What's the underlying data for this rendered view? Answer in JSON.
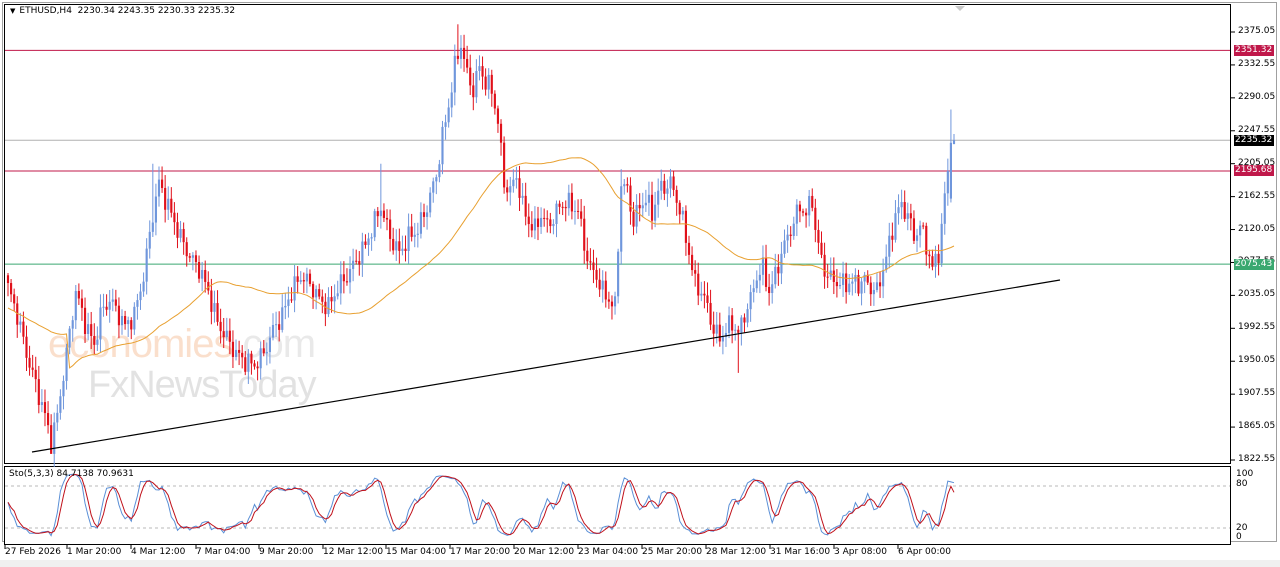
{
  "header": {
    "symbol_timeframe": "ETHUSD,H4",
    "ohlc": "2230.34 2243.35 2230.33 2235.32",
    "collapse_icon": "triangle-down-icon"
  },
  "watermark": {
    "line1_a": "economies",
    "line1_b": ".com",
    "line2": "FxNewsToday"
  },
  "colors": {
    "bull": "#6f96dc",
    "bear": "#e0101a",
    "ma": "#e8a030",
    "resistance": "#c0184a",
    "support": "#3aa870",
    "current": "#b0b0b0",
    "trendline": "#000000",
    "sto_main": "#5a8fd6",
    "sto_signal": "#c0101a"
  },
  "price_axis": {
    "ticks": [
      "2375.05",
      "2332.55",
      "2290.05",
      "2247.55",
      "2205.05",
      "2162.55",
      "2120.05",
      "2077.55",
      "2035.05",
      "1992.55",
      "1950.05",
      "1907.55",
      "1865.05",
      "1822.55"
    ],
    "max": 2375.05,
    "min": 1822.55
  },
  "levels": [
    {
      "name": "resistance-upper",
      "value": "2351.32",
      "color": "#c0184a"
    },
    {
      "name": "current-price",
      "value": "2235.32",
      "color": "#000000"
    },
    {
      "name": "resistance-lower",
      "value": "2195.68",
      "color": "#c0184a"
    },
    {
      "name": "support",
      "value": "2075.43",
      "color": "#3aa870"
    }
  ],
  "stochastic": {
    "label": "Sto(5,3,3) 84.7138 70.9631",
    "ticks": [
      "100",
      "80",
      "20",
      "0"
    ]
  },
  "time_axis": {
    "labels": [
      "27 Feb 2026",
      "1 Mar 20:00",
      "4 Mar 12:00",
      "7 Mar 04:00",
      "9 Mar 20:00",
      "12 Mar 12:00",
      "15 Mar 04:00",
      "17 Mar 20:00",
      "20 Mar 12:00",
      "23 Mar 04:00",
      "25 Mar 20:00",
      "28 Mar 12:00",
      "31 Mar 16:00",
      "3 Apr 08:00",
      "6 Apr 00:00"
    ]
  },
  "chart_data": {
    "type": "candlestick",
    "title": "ETHUSD,H4",
    "ohlc_last": {
      "open": 2230.34,
      "high": 2243.35,
      "low": 2230.33,
      "close": 2235.32
    },
    "ylim": [
      1822.55,
      2375.05
    ],
    "x_tick_labels": [
      "27 Feb 2026",
      "1 Mar 20:00",
      "4 Mar 12:00",
      "7 Mar 04:00",
      "9 Mar 20:00",
      "12 Mar 12:00",
      "15 Mar 04:00",
      "17 Mar 20:00",
      "20 Mar 12:00",
      "23 Mar 04:00",
      "25 Mar 20:00",
      "28 Mar 12:00",
      "31 Mar 16:00",
      "3 Apr 08:00",
      "6 Apr 00:00"
    ],
    "horizontal_levels": [
      2351.32,
      2235.32,
      2195.68,
      2075.43
    ],
    "trendline": {
      "from": {
        "x": "27 Feb 2026",
        "y": 1835
      },
      "to": {
        "x": "8 Apr",
        "y": 2055
      }
    },
    "moving_average": "orange line, ~2000 rising to ~2185 mid-March, falling to ~2070 early April",
    "key_points": [
      {
        "label": "start",
        "price": 2045
      },
      {
        "label": "low 28 Feb",
        "price": 1835
      },
      {
        "label": "high 4 Mar",
        "price": 2200
      },
      {
        "label": "low 7-8 Mar",
        "price": 1935
      },
      {
        "label": "high 12 Mar",
        "price": 2205
      },
      {
        "label": "peak 15 Mar",
        "price": 2385
      },
      {
        "label": "drop 17 Mar",
        "price": 2150
      },
      {
        "label": "low 22 Mar",
        "price": 2020
      },
      {
        "label": "high 24 Mar",
        "price": 2198
      },
      {
        "label": "low 26-28 Mar",
        "price": 1970
      },
      {
        "label": "high 31 Mar",
        "price": 2168
      },
      {
        "label": "range 1-4 Apr",
        "price": 2040
      },
      {
        "label": "high 5 Apr",
        "price": 2170
      },
      {
        "label": "dip 6 Apr",
        "price": 2065
      },
      {
        "label": "spike 7 Apr",
        "price": 2275
      },
      {
        "label": "last close",
        "price": 2235.32
      }
    ],
    "indicator": {
      "name": "Stochastic",
      "params": "5,3,3",
      "main": 84.7138,
      "signal": 70.9631,
      "levels": [
        20,
        80
      ],
      "range": [
        0,
        100
      ]
    }
  }
}
